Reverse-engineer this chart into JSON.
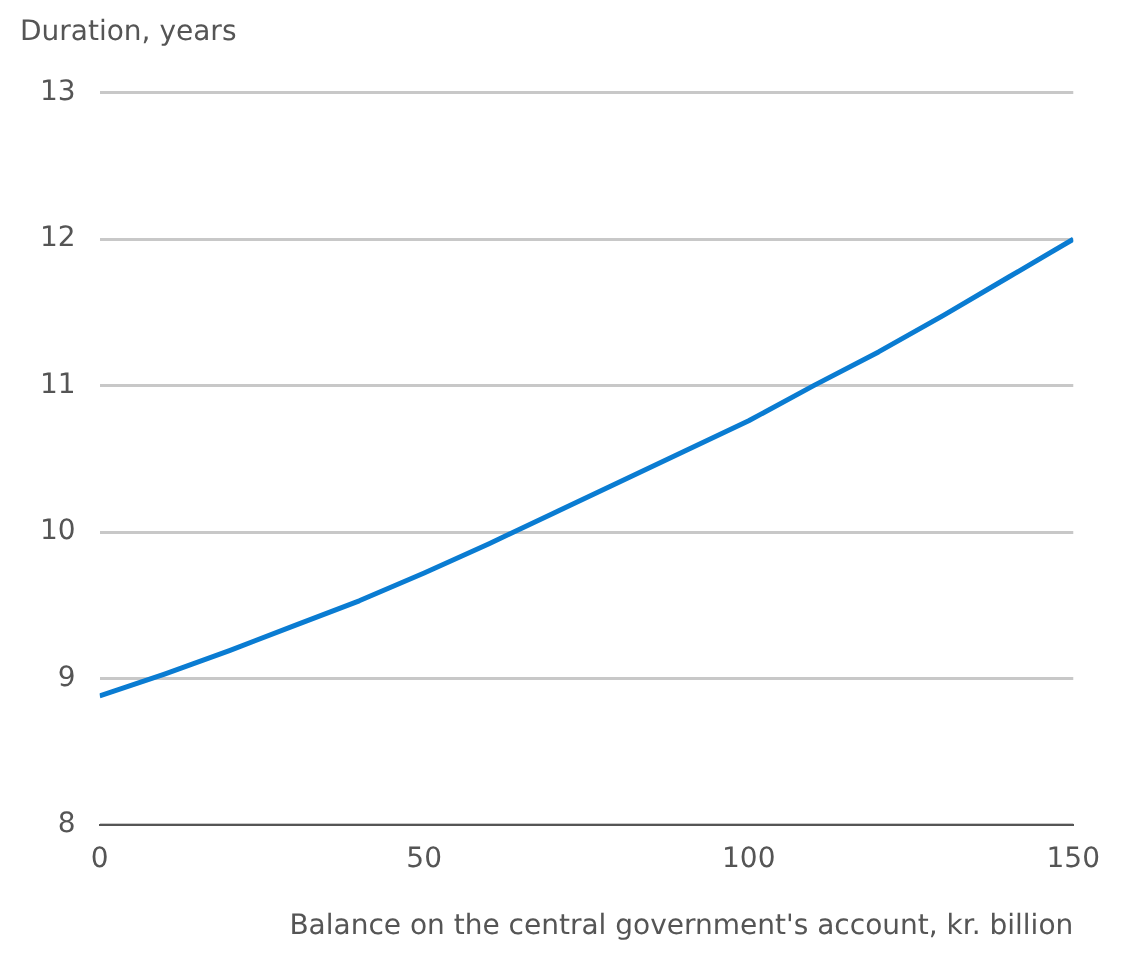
{
  "chart_data": {
    "type": "line",
    "xlabel": "Balance on the central government's account, kr. billion",
    "ylabel": "Duration, years",
    "x": [
      0,
      10,
      20,
      30,
      40,
      50,
      60,
      70,
      80,
      90,
      100,
      110,
      120,
      130,
      140,
      150
    ],
    "series": [
      {
        "color": "#0a7cd2",
        "values": [
          8.88,
          9.03,
          9.19,
          9.36,
          9.53,
          9.72,
          9.92,
          10.13,
          10.34,
          10.55,
          10.76,
          11.0,
          11.23,
          11.48,
          11.74,
          12.0
        ]
      }
    ],
    "xlim": [
      0,
      150
    ],
    "xticks": [
      0,
      50,
      100,
      150
    ],
    "ylim": [
      8,
      13
    ],
    "yticks": [
      8,
      9,
      10,
      11,
      12,
      13
    ],
    "grid": "y",
    "legend": false,
    "marker": "none",
    "line_style": "solid"
  }
}
